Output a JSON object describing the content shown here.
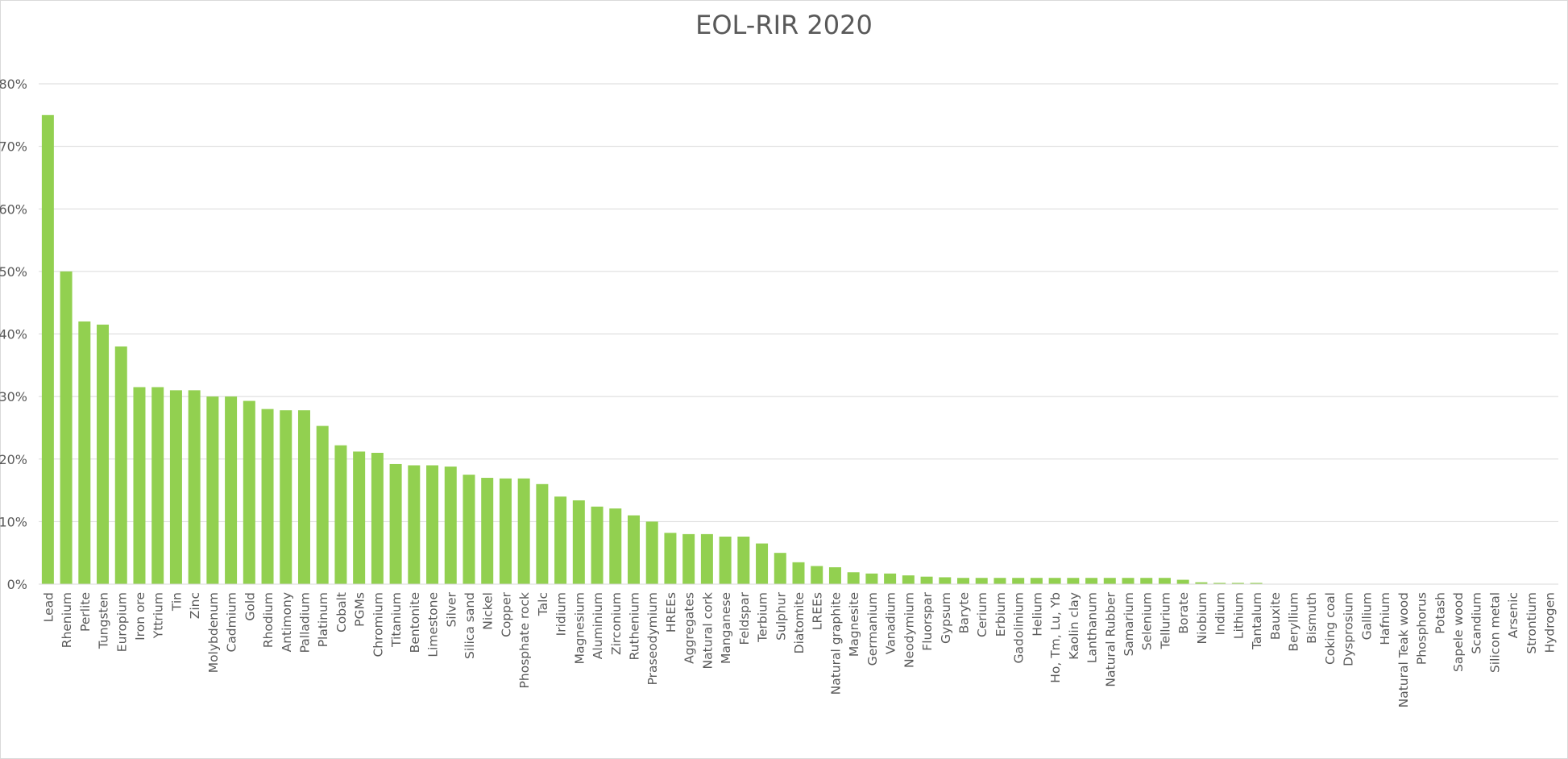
{
  "chart_data": {
    "type": "bar",
    "title": "EOL-RIR 2020",
    "xlabel": "",
    "ylabel": "",
    "ylim": [
      0,
      80
    ],
    "y_tick_labels": [
      "0%",
      "10%",
      "20%",
      "30%",
      "40%",
      "50%",
      "60%",
      "70%",
      "80%"
    ],
    "grid": true,
    "legend": "none",
    "bar_color": "#92d050",
    "categories": [
      "Lead",
      "Rhenium",
      "Perlite",
      "Tungsten",
      "Europium",
      "Iron ore",
      "Yttrium",
      "Tin",
      "Zinc",
      "Molybdenum",
      "Cadmium",
      "Gold",
      "Rhodium",
      "Antimony",
      "Palladium",
      "Platinum",
      "Cobalt",
      "PGMs",
      "Chromium",
      "Titanium",
      "Bentonite",
      "Limestone",
      "Silver",
      "Silica sand",
      "Nickel",
      "Copper",
      "Phosphate rock",
      "Talc",
      "Iridium",
      "Magnesium",
      "Aluminium",
      "Zirconium",
      "Ruthenium",
      "Praseodymium",
      "HREEs",
      "Aggregates",
      "Natural cork",
      "Manganese",
      "Feldspar",
      "Terbium",
      "Sulphur",
      "Diatomite",
      "LREEs",
      "Natural graphite",
      "Magnesite",
      "Germanium",
      "Vanadium",
      "Neodymium",
      "Fluorspar",
      "Gypsum",
      "Baryte",
      "Cerium",
      "Erbium",
      "Gadolinium",
      "Helium",
      "Ho, Tm, Lu, Yb",
      "Kaolin clay",
      "Lanthanum",
      "Natural Rubber",
      "Samarium",
      "Selenium",
      "Tellurium",
      "Borate",
      "Niobium",
      "Indium",
      "Lithium",
      "Tantalum",
      "Bauxite",
      "Beryllium",
      "Bismuth",
      "Coking coal",
      "Dysprosium",
      "Gallium",
      "Hafnium",
      "Natural Teak wood",
      "Phosphorus",
      "Potash",
      "Sapele wood",
      "Scandium",
      "Silicon metal",
      "Arsenic",
      "Strontium",
      "Hydrogen"
    ],
    "values": [
      75,
      50,
      42,
      41.5,
      38,
      31.5,
      31.5,
      31,
      31,
      30,
      30,
      29.3,
      28,
      27.8,
      27.8,
      25.3,
      22.2,
      21.2,
      21,
      19.2,
      19,
      19,
      18.8,
      17.5,
      17,
      16.9,
      16.9,
      16,
      14,
      13.4,
      12.4,
      12.1,
      11,
      10,
      8.2,
      8,
      8,
      7.6,
      7.6,
      6.5,
      5,
      3.5,
      2.9,
      2.7,
      1.9,
      1.7,
      1.7,
      1.4,
      1.2,
      1.1,
      1,
      1,
      1,
      1,
      1,
      1,
      1,
      1,
      1,
      1,
      1,
      1,
      0.7,
      0.3,
      0.2,
      0.2,
      0.2,
      0,
      0,
      0,
      0,
      0,
      0,
      0,
      0,
      0,
      0,
      0,
      0,
      0,
      0,
      0,
      0
    ]
  }
}
